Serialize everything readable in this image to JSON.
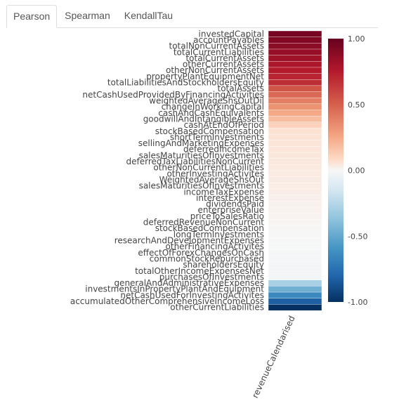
{
  "tabs": [
    {
      "label": "Pearson",
      "active": true
    },
    {
      "label": "Spearman",
      "active": false
    },
    {
      "label": "KendallTau",
      "active": false
    }
  ],
  "chart_data": {
    "type": "heatmap",
    "x_labels": [
      "revenueCalendarised"
    ],
    "colorscale": "RdBu",
    "zlim": [
      -1.0,
      1.0
    ],
    "colorbar_ticks": [
      "1.00",
      "0.50",
      "0.00",
      "-0.50",
      "-1.00"
    ],
    "colorbar_tick_values": [
      1.0,
      0.5,
      0.0,
      -0.5,
      -1.0
    ],
    "y_labels": [
      "investedCapital",
      "accountPayables",
      "totalNonCurrentAssets",
      "totalCurrentLiabilities",
      "totalCurrentAssets",
      "otherCurrentAssets",
      "otherNonCurrentAssets",
      "propertyPlantEquipmentNet",
      "totalLiabilitiesAndStockholdersEquity",
      "totalAssets",
      "netCashUsedProvidedByFinancingActivities",
      "weightedAverageShsOutDil",
      "changeInWorkingCapital",
      "cashAndCashEquivalents",
      "goodwillAndIntangibleAssets",
      "cashAtEndOfPeriod",
      "stockBasedCompensation",
      "shortTermInvestments",
      "sellingAndMarketingExpenses",
      "deferredIncomeTax",
      "salesMaturitiesOfInvestments",
      "deferredTaxLiabilitiesNonCurrent",
      "otherNonCurrentLiabilities",
      "otherInvestingActivites",
      "WeightedAverageShsOut",
      "salesMaturitiesOfInvestments",
      "incomeTaxExpense",
      "interestExpense",
      "dividendsPaid",
      "enterpriseValue",
      "priceToSalesRatio",
      "deferredRevenueNonCurrent",
      "stockBasedCompensation",
      "longTermInvestments",
      "researchAndDevelopmentExpenses",
      "otherFinancingActivites",
      "effectOfForexChangesOnCash",
      "commonStockRepurchased",
      "shareholdersEquity",
      "totalOtherIncomeExpensesNet",
      "purchasesOfInvestments",
      "generalAndAdministrativeExpenses",
      "investmentsInPropertyPlantAndEquipment",
      "netCashUsedForInvestingActivites",
      "accumulatedOtherComprehensiveIncomeLoss",
      "otherCurrentLiabilities"
    ]
  }
}
